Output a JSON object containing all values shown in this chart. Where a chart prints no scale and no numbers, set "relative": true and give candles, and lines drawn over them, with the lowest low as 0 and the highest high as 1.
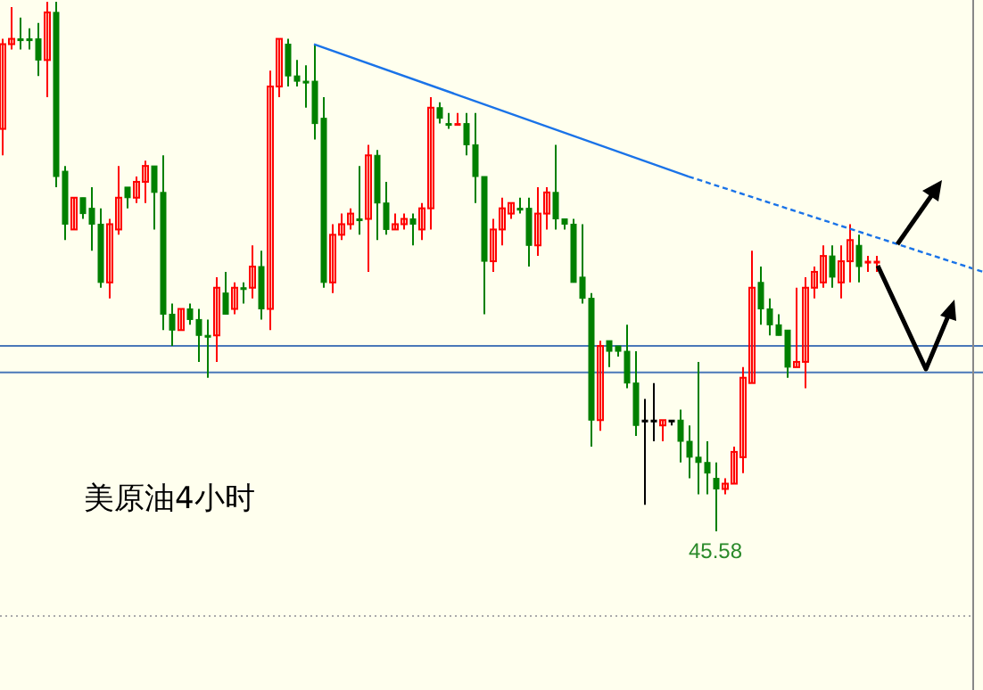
{
  "chart_data": {
    "type": "candlestick",
    "relative": true,
    "categories": [
      null,
      null,
      null,
      null,
      null,
      null,
      null,
      null,
      null,
      null,
      null,
      null,
      null,
      null,
      null,
      null,
      null,
      null,
      null,
      null,
      null,
      null,
      null,
      null,
      null,
      null,
      null,
      null,
      null,
      null,
      null,
      null,
      null,
      null,
      null,
      null,
      null,
      null,
      null,
      null,
      null,
      null,
      null,
      null,
      null,
      null,
      null,
      null,
      null,
      null,
      null,
      null,
      null,
      null,
      null,
      null,
      null,
      null,
      null,
      null,
      null,
      null,
      null,
      null,
      null,
      null,
      null,
      null,
      null,
      null,
      null,
      null,
      null,
      null,
      null,
      null,
      null,
      null,
      null,
      null,
      null,
      null,
      null,
      null,
      null,
      null,
      null,
      null,
      null,
      null,
      null,
      null,
      null,
      null,
      null,
      null,
      null,
      null,
      null,
      null,
      null,
      null,
      null,
      null,
      null,
      null,
      null,
      null,
      null,
      null,
      null
    ],
    "ohlc": [
      [
        0.76,
        0.93,
        0.71,
        0.92
      ],
      [
        0.92,
        0.99,
        0.91,
        0.93
      ],
      [
        0.93,
        0.97,
        0.91,
        0.93
      ],
      [
        0.93,
        0.95,
        0.91,
        0.93
      ],
      [
        0.93,
        0.96,
        0.86,
        0.89
      ],
      [
        0.89,
        1,
        0.82,
        0.98
      ],
      [
        0.98,
        1,
        0.65,
        0.67
      ],
      [
        0.68,
        0.69,
        0.55,
        0.58
      ],
      [
        0.57,
        0.63,
        0.57,
        0.63
      ],
      [
        0.63,
        0.63,
        0.59,
        0.6
      ],
      [
        0.61,
        0.65,
        0.53,
        0.58
      ],
      [
        0.58,
        0.61,
        0.46,
        0.47
      ],
      [
        0.47,
        0.59,
        0.44,
        0.58
      ],
      [
        0.57,
        0.69,
        0.56,
        0.63
      ],
      [
        0.65,
        0.65,
        0.61,
        0.63
      ],
      [
        0.63,
        0.67,
        0.62,
        0.66
      ],
      [
        0.66,
        0.7,
        0.62,
        0.69
      ],
      [
        0.69,
        0.69,
        0.57,
        0.64
      ],
      [
        0.64,
        0.71,
        0.38,
        0.41
      ],
      [
        0.41,
        0.43,
        0.35,
        0.38
      ],
      [
        0.38,
        0.42,
        0.38,
        0.42
      ],
      [
        0.42,
        0.43,
        0.39,
        0.4
      ],
      [
        0.4,
        0.42,
        0.32,
        0.37
      ],
      [
        0.37,
        0.4,
        0.29,
        0.37
      ],
      [
        0.37,
        0.48,
        0.32,
        0.46
      ],
      [
        0.45,
        0.49,
        0.41,
        0.41
      ],
      [
        0.42,
        0.47,
        0.41,
        0.46
      ],
      [
        0.46,
        0.47,
        0.43,
        0.46
      ],
      [
        0.46,
        0.54,
        0.44,
        0.5
      ],
      [
        0.5,
        0.53,
        0.4,
        0.42
      ],
      [
        0.42,
        0.87,
        0.38,
        0.84
      ],
      [
        0.84,
        0.93,
        0.82,
        0.93
      ],
      [
        0.92,
        0.93,
        0.84,
        0.86
      ],
      [
        0.86,
        0.89,
        0.84,
        0.85
      ],
      [
        0.85,
        0.88,
        0.8,
        0.85
      ],
      [
        0.85,
        0.92,
        0.74,
        0.77
      ],
      [
        0.78,
        0.82,
        0.46,
        0.47
      ],
      [
        0.47,
        0.58,
        0.45,
        0.56
      ],
      [
        0.56,
        0.6,
        0.55,
        0.58
      ],
      [
        0.58,
        0.61,
        0.57,
        0.6
      ],
      [
        0.59,
        0.69,
        0.56,
        0.59
      ],
      [
        0.59,
        0.73,
        0.49,
        0.71
      ],
      [
        0.71,
        0.72,
        0.55,
        0.62
      ],
      [
        0.62,
        0.66,
        0.56,
        0.57
      ],
      [
        0.57,
        0.6,
        0.57,
        0.58
      ],
      [
        0.58,
        0.6,
        0.57,
        0.59
      ],
      [
        0.59,
        0.6,
        0.54,
        0.58
      ],
      [
        0.57,
        0.62,
        0.55,
        0.61
      ],
      [
        0.61,
        0.82,
        0.57,
        0.8
      ],
      [
        0.8,
        0.81,
        0.77,
        0.78
      ],
      [
        0.77,
        0.79,
        0.76,
        0.77
      ],
      [
        0.77,
        0.79,
        0.77,
        0.77
      ],
      [
        0.77,
        0.79,
        0.71,
        0.73
      ],
      [
        0.73,
        0.79,
        0.62,
        0.67
      ],
      [
        0.67,
        0.67,
        0.41,
        0.51
      ],
      [
        0.51,
        0.59,
        0.49,
        0.57
      ],
      [
        0.57,
        0.63,
        0.54,
        0.61
      ],
      [
        0.6,
        0.62,
        0.59,
        0.62
      ],
      [
        0.61,
        0.63,
        0.6,
        0.61
      ],
      [
        0.61,
        0.63,
        0.5,
        0.54
      ],
      [
        0.54,
        0.65,
        0.52,
        0.6
      ],
      [
        0.6,
        0.65,
        0.57,
        0.64
      ],
      [
        0.64,
        0.73,
        0.57,
        0.59
      ],
      [
        0.59,
        0.59,
        0.57,
        0.58
      ],
      [
        0.58,
        0.59,
        0.47,
        0.47
      ],
      [
        0.48,
        0.58,
        0.43,
        0.44
      ],
      [
        0.44,
        0.45,
        0.16,
        0.21
      ],
      [
        0.21,
        0.36,
        0.19,
        0.35
      ],
      [
        0.36,
        0.36,
        0.31,
        0.34
      ],
      [
        0.35,
        0.35,
        0.33,
        0.34
      ],
      [
        0.34,
        0.39,
        0.27,
        0.28
      ],
      [
        0.28,
        0.34,
        0.18,
        0.2
      ],
      [
        0.21,
        0.25,
        0.05,
        0.21
      ],
      [
        0.21,
        0.28,
        0.17,
        0.21
      ],
      [
        0.2,
        0.21,
        0.17,
        0.21
      ],
      [
        0.21,
        0.21,
        0.2,
        0.21
      ],
      [
        0.21,
        0.23,
        0.13,
        0.17
      ],
      [
        0.17,
        0.2,
        0.1,
        0.14
      ],
      [
        0.14,
        0.32,
        0.07,
        0.13
      ],
      [
        0.13,
        0.17,
        0.07,
        0.11
      ],
      [
        0.1,
        0.13,
        0,
        0.08
      ],
      [
        0.08,
        0.1,
        0.07,
        0.09
      ],
      [
        0.09,
        0.16,
        0.09,
        0.15
      ],
      [
        0.14,
        0.31,
        0.11,
        0.29
      ],
      [
        0.28,
        0.53,
        0.28,
        0.46
      ],
      [
        0.47,
        0.5,
        0.39,
        0.42
      ],
      [
        0.42,
        0.44,
        0.37,
        0.39
      ],
      [
        0.39,
        0.41,
        0.37,
        0.37
      ],
      [
        0.38,
        0.38,
        0.29,
        0.31
      ],
      [
        0.31,
        0.46,
        0.31,
        0.32
      ],
      [
        0.32,
        0.48,
        0.27,
        0.46
      ],
      [
        0.46,
        0.5,
        0.44,
        0.49
      ],
      [
        0.47,
        0.54,
        0.46,
        0.52
      ],
      [
        0.52,
        0.54,
        0.46,
        0.48
      ],
      [
        0.47,
        0.54,
        0.44,
        0.51
      ],
      [
        0.51,
        0.58,
        0.47,
        0.55
      ],
      [
        0.54,
        0.56,
        0.47,
        0.5
      ],
      [
        0.51,
        0.52,
        0.49,
        0.51
      ],
      [
        0.51,
        0.52,
        0.49,
        0.51
      ],
      null,
      null,
      null,
      null,
      null,
      null,
      null,
      null,
      null,
      null,
      null,
      null
    ],
    "colors": [
      "#ff0000",
      "#ff0000",
      "#008000",
      "#008000",
      "#008000",
      "#ff0000",
      "#008000",
      "#008000",
      "#ff0000",
      "#008000",
      "#008000",
      "#008000",
      "#ff0000",
      "#ff0000",
      "#008000",
      "#ff0000",
      "#ff0000",
      "#008000",
      "#008000",
      "#008000",
      "#ff0000",
      "#008000",
      "#008000",
      "#008000",
      "#ff0000",
      "#008000",
      "#ff0000",
      "#008000",
      "#ff0000",
      "#008000",
      "#ff0000",
      "#ff0000",
      "#008000",
      "#008000",
      "#008000",
      "#008000",
      "#008000",
      "#ff0000",
      "#ff0000",
      "#ff0000",
      "#008000",
      "#ff0000",
      "#008000",
      "#008000",
      "#ff0000",
      "#ff0000",
      "#008000",
      "#ff0000",
      "#ff0000",
      "#008000",
      "#008000",
      "#ff0000",
      "#008000",
      "#008000",
      "#008000",
      "#ff0000",
      "#ff0000",
      "#ff0000",
      "#008000",
      "#008000",
      "#ff0000",
      "#ff0000",
      "#008000",
      "#008000",
      "#008000",
      "#008000",
      "#008000",
      "#ff0000",
      "#008000",
      "#008000",
      "#008000",
      "#008000",
      "#000000",
      "#000000",
      "#ff0000",
      "#000000",
      "#008000",
      "#008000",
      "#008000",
      "#008000",
      "#008000",
      "#ff0000",
      "#ff0000",
      "#ff0000",
      "#ff0000",
      "#008000",
      "#008000",
      "#008000",
      "#008000",
      "#ff0000",
      "#ff0000",
      "#ff0000",
      "#ff0000",
      "#008000",
      "#ff0000",
      "#ff0000",
      "#008000",
      "#ff0000",
      "#ff0000",
      null,
      null,
      null,
      null,
      null,
      null,
      null,
      null,
      null,
      null,
      null,
      null
    ],
    "series": [
      {
        "type": "line",
        "color": "#1a73e8",
        "line_style": "solid",
        "values": [
          null,
          null,
          null,
          null,
          null,
          null,
          null,
          null,
          null,
          null,
          null,
          null,
          null,
          null,
          null,
          null,
          null,
          null,
          null,
          null,
          null,
          null,
          null,
          null,
          null,
          null,
          null,
          null,
          null,
          null,
          null,
          null,
          null,
          null,
          null,
          0.92,
          null,
          null,
          null,
          null,
          null,
          null,
          null,
          null,
          null,
          null,
          null,
          null,
          null,
          null,
          null,
          null,
          null,
          null,
          null,
          null,
          null,
          null,
          null,
          null,
          null,
          null,
          null,
          null,
          null,
          null,
          null,
          null,
          null,
          null,
          null,
          null,
          null,
          null,
          null,
          null,
          null,
          0.67,
          null,
          null,
          null,
          null,
          null,
          null,
          null,
          null,
          null,
          null,
          null,
          null,
          null,
          null,
          null,
          null,
          null,
          null,
          null,
          null,
          null,
          null,
          null,
          null,
          null,
          null,
          null,
          null,
          null,
          null,
          null,
          null,
          null
        ]
      },
      {
        "type": "line",
        "color": "#1a73e8",
        "line_style": "dashed",
        "values": [
          null,
          null,
          null,
          null,
          null,
          null,
          null,
          null,
          null,
          null,
          null,
          null,
          null,
          null,
          null,
          null,
          null,
          null,
          null,
          null,
          null,
          null,
          null,
          null,
          null,
          null,
          null,
          null,
          null,
          null,
          null,
          null,
          null,
          null,
          null,
          null,
          null,
          null,
          null,
          null,
          null,
          null,
          null,
          null,
          null,
          null,
          null,
          null,
          null,
          null,
          null,
          null,
          null,
          null,
          null,
          null,
          null,
          null,
          null,
          null,
          null,
          null,
          null,
          null,
          null,
          null,
          null,
          null,
          null,
          null,
          null,
          null,
          null,
          null,
          null,
          null,
          null,
          0.67,
          null,
          null,
          null,
          null,
          null,
          null,
          null,
          null,
          null,
          null,
          null,
          null,
          null,
          null,
          null,
          null,
          null,
          null,
          null,
          null,
          null,
          null,
          null,
          null,
          null,
          null,
          null,
          null,
          null,
          null,
          null,
          null,
          0.49
        ]
      }
    ],
    "ref_lines": [
      {
        "axis": "y",
        "value": 0.35,
        "color": "#4a78b8"
      },
      {
        "axis": "y",
        "value": 0.3,
        "color": "#4a78b8"
      }
    ],
    "annotations": [
      "美原油4小时",
      {
        "text": "45.58",
        "y": 0
      }
    ]
  }
}
